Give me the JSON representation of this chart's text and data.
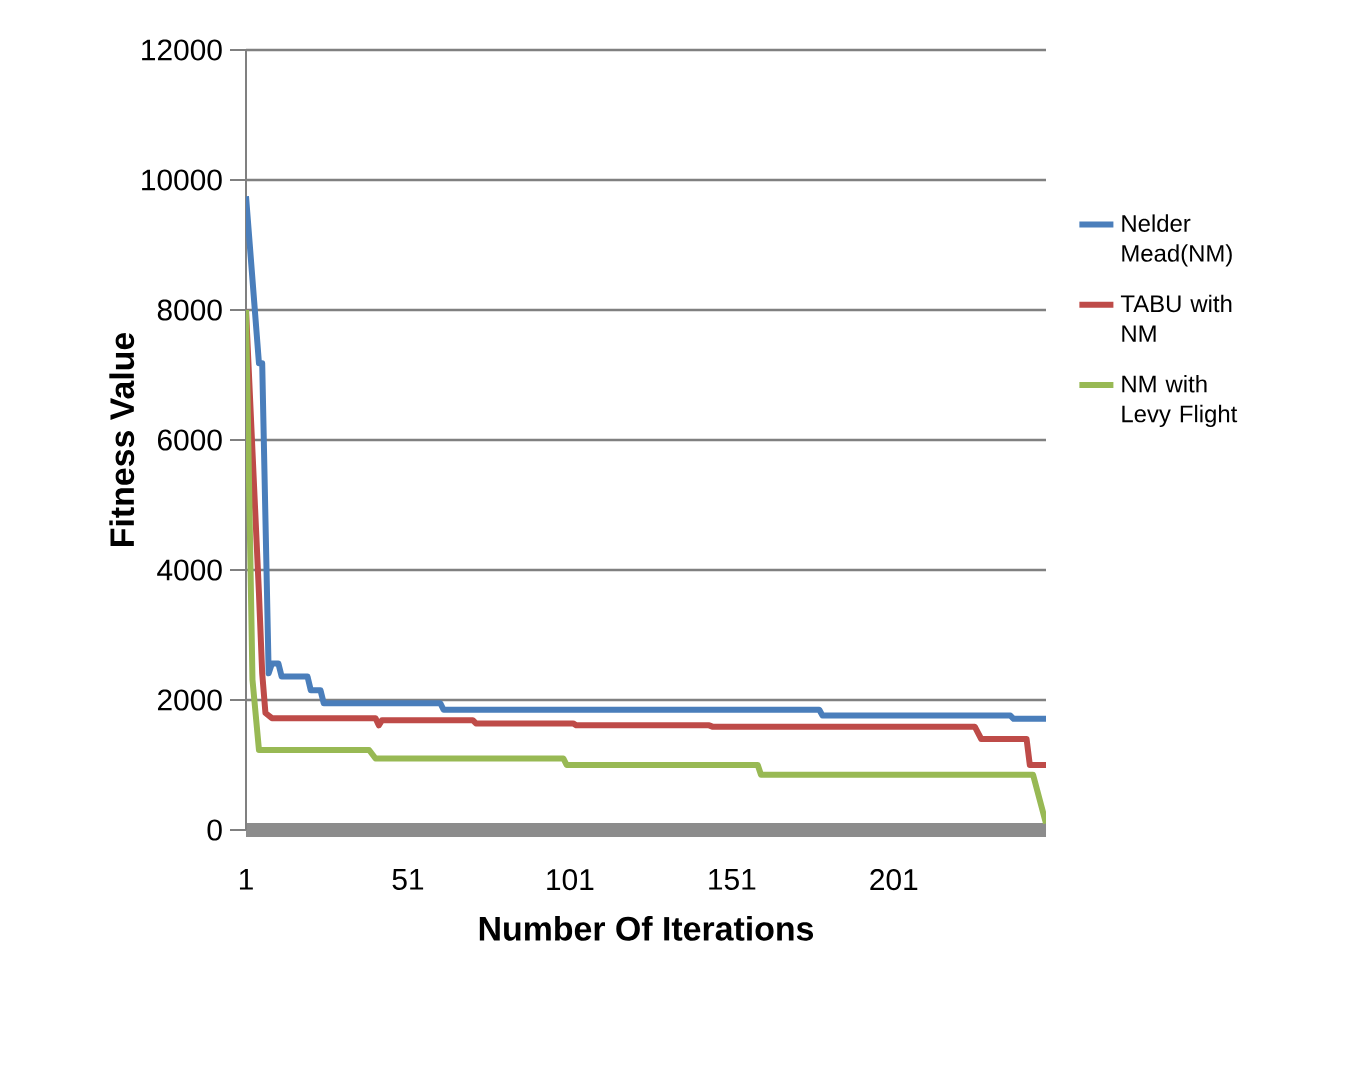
{
  "chart_data": {
    "type": "line",
    "xlabel": "Number Of Iterations",
    "ylabel": "Fitness Value",
    "xlim": [
      1,
      248
    ],
    "xticks": [
      1,
      51,
      101,
      151,
      201
    ],
    "ylim": [
      0,
      12000
    ],
    "yticks": [
      0,
      2000,
      4000,
      6000,
      8000,
      10000,
      12000
    ],
    "grid": "y",
    "legend": "right",
    "series": [
      {
        "name": "Nelder Mead(NM)",
        "color": "#4a7ebb",
        "x": [
          1,
          5,
          6,
          8,
          9,
          11,
          12,
          20,
          21,
          24,
          25,
          61,
          62,
          178,
          179,
          237,
          238,
          248
        ],
        "values": [
          9750,
          7180,
          7180,
          2410,
          2560,
          2560,
          2360,
          2360,
          2150,
          2150,
          1950,
          1950,
          1850,
          1850,
          1760,
          1760,
          1710,
          1710
        ]
      },
      {
        "name": "TABU with NM",
        "color": "#be4b48",
        "x": [
          1,
          5,
          6,
          7,
          9,
          41,
          42,
          43,
          71,
          72,
          102,
          103,
          144,
          145,
          226,
          228,
          242,
          243,
          248
        ],
        "values": [
          8000,
          3640,
          2410,
          1800,
          1720,
          1720,
          1610,
          1690,
          1690,
          1640,
          1640,
          1610,
          1610,
          1590,
          1590,
          1400,
          1400,
          1000,
          1000
        ]
      },
      {
        "name": "NM with Levy Flight",
        "color": "#98b954",
        "x": [
          1,
          3,
          5,
          39,
          41,
          99,
          100,
          159,
          160,
          244,
          248
        ],
        "values": [
          8000,
          2310,
          1230,
          1230,
          1100,
          1100,
          1000,
          1000,
          850,
          850,
          100
        ]
      }
    ]
  }
}
